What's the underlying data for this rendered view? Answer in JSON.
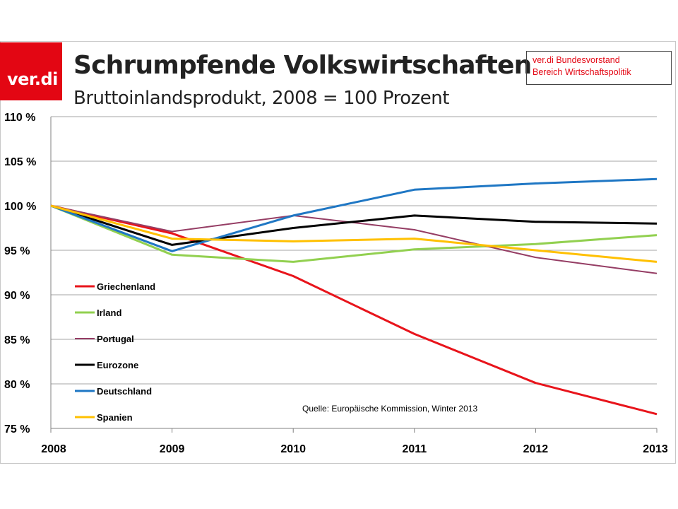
{
  "header": {
    "logo_text": "ver.di",
    "title": "Schrumpfende Volkswirtschaften",
    "subtitle": "Bruttoinlandsprodukt, 2008 = 100 Prozent",
    "publisher_line1": "ver.di Bundesvorstand",
    "publisher_line2": "Bereich Wirtschaftspolitik"
  },
  "chart_data": {
    "type": "line",
    "title": "Schrumpfende Volkswirtschaften",
    "subtitle": "Bruttoinlandsprodukt, 2008 = 100 Prozent",
    "x": [
      "2008",
      "2009",
      "2010",
      "2011",
      "2012",
      "2013"
    ],
    "y_ticks": [
      "110 %",
      "105 %",
      "100 %",
      "95 %",
      "90 %",
      "85 %",
      "80 %",
      "75 %"
    ],
    "ylim": [
      75,
      110
    ],
    "grid": "horizontal",
    "legend_position": "left-bottom",
    "source": "Quelle: Europäische Kommission, Winter 2013",
    "series": [
      {
        "name": "Griechenland",
        "color": "#e8141b",
        "values": [
          100,
          96.9,
          92.1,
          85.6,
          80.1,
          76.6
        ]
      },
      {
        "name": "Irland",
        "color": "#92d050",
        "values": [
          100,
          94.5,
          93.7,
          95.1,
          95.7,
          96.7
        ]
      },
      {
        "name": "Portugal",
        "color": "#953d64",
        "values": [
          100,
          97.1,
          98.9,
          97.3,
          94.2,
          92.4
        ]
      },
      {
        "name": "Eurozone",
        "color": "#000000",
        "values": [
          100,
          95.6,
          97.5,
          98.9,
          98.2,
          98.0
        ]
      },
      {
        "name": "Deutschland",
        "color": "#1f77c4",
        "values": [
          100,
          94.9,
          98.9,
          101.8,
          102.5,
          103.0
        ]
      },
      {
        "name": "Spanien",
        "color": "#ffc000",
        "values": [
          100,
          96.3,
          96.0,
          96.3,
          95.0,
          93.7
        ]
      }
    ]
  }
}
